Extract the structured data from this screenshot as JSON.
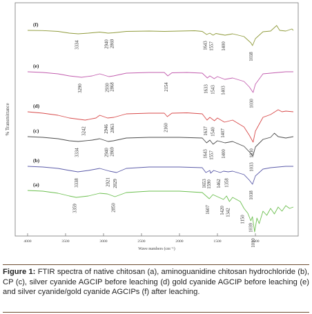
{
  "caption": {
    "label": "Figure 1:",
    "text": "FTIR spectra of native chitosan (a), aminoguanidine chitosan hydrochloride (b), CP (c), silver cyanide AGCIP before leaching (d) gold cyanide AGCIP before leaching (e) and silver cyanide/gold cyanide AGCIPs (f) after leaching."
  },
  "chart_data": {
    "type": "line",
    "title": "",
    "xlabel": "Wave numbers (cm⁻¹)",
    "ylabel": "% Transmittance",
    "xlim": [
      4000,
      500
    ],
    "x_reversed": true,
    "x_ticks": [
      4000,
      3500,
      3000,
      2500,
      2000,
      1500,
      1000
    ],
    "grid": false,
    "series": [
      {
        "name": "(f)",
        "color": "#8f9a3a",
        "baseline": 0.0,
        "points": [
          [
            4000,
            0
          ],
          [
            3800,
            0.3
          ],
          [
            3600,
            1.5
          ],
          [
            3450,
            4
          ],
          [
            3334,
            5
          ],
          [
            3200,
            4
          ],
          [
            3050,
            2.5
          ],
          [
            2940,
            4
          ],
          [
            2869,
            3.5
          ],
          [
            2700,
            1.5
          ],
          [
            2400,
            1
          ],
          [
            2200,
            1.5
          ],
          [
            2000,
            1
          ],
          [
            1800,
            0.5
          ],
          [
            1700,
            1.5
          ],
          [
            1643,
            6
          ],
          [
            1600,
            4
          ],
          [
            1557,
            7
          ],
          [
            1520,
            4.5
          ],
          [
            1400,
            7
          ],
          [
            1300,
            5
          ],
          [
            1150,
            9
          ],
          [
            1100,
            14
          ],
          [
            1060,
            18
          ],
          [
            1038,
            22
          ],
          [
            1000,
            12
          ],
          [
            900,
            2
          ],
          [
            800,
            1
          ],
          [
            720,
            -7
          ],
          [
            680,
            0
          ],
          [
            600,
            1
          ],
          [
            520,
            -2
          ],
          [
            500,
            0
          ]
        ],
        "labels": [
          {
            "x": 3334,
            "text": "3334"
          },
          {
            "x": 2940,
            "text": "2940"
          },
          {
            "x": 2869,
            "text": "2869"
          },
          {
            "x": 1643,
            "text": "1643"
          },
          {
            "x": 1557,
            "text": "1557"
          },
          {
            "x": 1400,
            "text": "1400"
          },
          {
            "x": 1038,
            "text": "1038"
          }
        ]
      },
      {
        "name": "(e)",
        "color": "#c25cae",
        "baseline": 0.0,
        "points": [
          [
            4000,
            0
          ],
          [
            3800,
            1
          ],
          [
            3600,
            3
          ],
          [
            3450,
            6
          ],
          [
            3290,
            8
          ],
          [
            3150,
            6
          ],
          [
            3050,
            3
          ],
          [
            2930,
            7
          ],
          [
            2868,
            6
          ],
          [
            2700,
            2
          ],
          [
            2400,
            1
          ],
          [
            2200,
            1
          ],
          [
            2154,
            6
          ],
          [
            2100,
            1.5
          ],
          [
            1900,
            1
          ],
          [
            1700,
            2
          ],
          [
            1633,
            9
          ],
          [
            1600,
            6
          ],
          [
            1543,
            10
          ],
          [
            1500,
            7
          ],
          [
            1403,
            11
          ],
          [
            1300,
            9
          ],
          [
            1150,
            14
          ],
          [
            1080,
            22
          ],
          [
            1030,
            30
          ],
          [
            1000,
            18
          ],
          [
            900,
            3
          ],
          [
            700,
            1
          ],
          [
            600,
            0
          ],
          [
            500,
            0
          ]
        ],
        "labels": [
          {
            "x": 3290,
            "text": "3290"
          },
          {
            "x": 2930,
            "text": "2930"
          },
          {
            "x": 2868,
            "text": "2868"
          },
          {
            "x": 2154,
            "text": "2154"
          },
          {
            "x": 1633,
            "text": "1633"
          },
          {
            "x": 1543,
            "text": "1543"
          },
          {
            "x": 1403,
            "text": "1403"
          },
          {
            "x": 1030,
            "text": "1030"
          }
        ]
      },
      {
        "name": "(d)",
        "color": "#d84a4a",
        "baseline": 0.0,
        "points": [
          [
            4000,
            0
          ],
          [
            3800,
            2
          ],
          [
            3600,
            5
          ],
          [
            3450,
            9
          ],
          [
            3242,
            12
          ],
          [
            3100,
            9
          ],
          [
            3050,
            5
          ],
          [
            2946,
            9
          ],
          [
            2863,
            8
          ],
          [
            2700,
            3
          ],
          [
            2400,
            2
          ],
          [
            2200,
            2
          ],
          [
            2160,
            7
          ],
          [
            2100,
            2
          ],
          [
            1900,
            1.5
          ],
          [
            1700,
            3
          ],
          [
            1637,
            12
          ],
          [
            1600,
            8
          ],
          [
            1540,
            13
          ],
          [
            1500,
            9
          ],
          [
            1407,
            15
          ],
          [
            1300,
            12
          ],
          [
            1150,
            22
          ],
          [
            1080,
            34
          ],
          [
            1030,
            44
          ],
          [
            1000,
            28
          ],
          [
            900,
            8
          ],
          [
            800,
            4
          ],
          [
            700,
            -3
          ],
          [
            650,
            0
          ],
          [
            600,
            -1
          ],
          [
            500,
            0
          ]
        ],
        "labels": [
          {
            "x": 3242,
            "text": "3242"
          },
          {
            "x": 2946,
            "text": "2946"
          },
          {
            "x": 2863,
            "text": "2863"
          },
          {
            "x": 2160,
            "text": "2160"
          },
          {
            "x": 1637,
            "text": "1637"
          },
          {
            "x": 1540,
            "text": "1540"
          },
          {
            "x": 1407,
            "text": "1407"
          },
          {
            "x": 1030,
            "text": "1030"
          }
        ]
      },
      {
        "name": "(c)",
        "color": "#4a4a4a",
        "baseline": 0.0,
        "points": [
          [
            4000,
            0
          ],
          [
            3800,
            1
          ],
          [
            3600,
            3
          ],
          [
            3450,
            6
          ],
          [
            3334,
            7
          ],
          [
            3150,
            5
          ],
          [
            3050,
            3
          ],
          [
            2940,
            7
          ],
          [
            2869,
            6
          ],
          [
            2700,
            2
          ],
          [
            2400,
            1
          ],
          [
            2000,
            1
          ],
          [
            1700,
            2
          ],
          [
            1643,
            9
          ],
          [
            1600,
            5
          ],
          [
            1557,
            11
          ],
          [
            1500,
            6
          ],
          [
            1400,
            9
          ],
          [
            1300,
            7
          ],
          [
            1150,
            14
          ],
          [
            1080,
            22
          ],
          [
            1033,
            28
          ],
          [
            1000,
            15
          ],
          [
            900,
            4
          ],
          [
            800,
            1
          ],
          [
            750,
            -5
          ],
          [
            700,
            0
          ],
          [
            600,
            2
          ],
          [
            500,
            0
          ]
        ],
        "labels": [
          {
            "x": 3334,
            "text": "3334"
          },
          {
            "x": 2940,
            "text": "2940"
          },
          {
            "x": 2869,
            "text": "2869"
          },
          {
            "x": 1643,
            "text": "1643"
          },
          {
            "x": 1557,
            "text": "1557"
          },
          {
            "x": 1400,
            "text": "1400"
          },
          {
            "x": 1033,
            "text": "1033"
          }
        ]
      },
      {
        "name": "(b)",
        "color": "#5a5aa8",
        "baseline": 0.0,
        "points": [
          [
            4000,
            0
          ],
          [
            3800,
            1
          ],
          [
            3600,
            3
          ],
          [
            3450,
            6
          ],
          [
            3338,
            8
          ],
          [
            3200,
            6
          ],
          [
            3050,
            3
          ],
          [
            2921,
            7
          ],
          [
            2829,
            9
          ],
          [
            2700,
            3
          ],
          [
            2400,
            1
          ],
          [
            2000,
            1
          ],
          [
            1700,
            2
          ],
          [
            1653,
            9
          ],
          [
            1600,
            6
          ],
          [
            1590,
            10
          ],
          [
            1550,
            6
          ],
          [
            1462,
            9
          ],
          [
            1420,
            7
          ],
          [
            1358,
            8
          ],
          [
            1300,
            7
          ],
          [
            1150,
            12
          ],
          [
            1080,
            20
          ],
          [
            1038,
            26
          ],
          [
            1000,
            14
          ],
          [
            900,
            4
          ],
          [
            800,
            2
          ],
          [
            700,
            1
          ],
          [
            600,
            0
          ],
          [
            500,
            0
          ]
        ],
        "labels": [
          {
            "x": 3338,
            "text": "3338"
          },
          {
            "x": 2921,
            "text": "2921"
          },
          {
            "x": 2829,
            "text": "2829"
          },
          {
            "x": 1653,
            "text": "1653"
          },
          {
            "x": 1590,
            "text": "1590"
          },
          {
            "x": 1462,
            "text": "1462"
          },
          {
            "x": 1358,
            "text": "1358"
          },
          {
            "x": 1038,
            "text": "1038"
          }
        ]
      },
      {
        "name": "(a)",
        "color": "#6bbf4e",
        "baseline": 0.0,
        "points": [
          [
            4000,
            0
          ],
          [
            3800,
            1
          ],
          [
            3600,
            4
          ],
          [
            3450,
            8
          ],
          [
            3359,
            10
          ],
          [
            3200,
            8
          ],
          [
            3050,
            4
          ],
          [
            2950,
            5
          ],
          [
            2850,
            9
          ],
          [
            2700,
            3
          ],
          [
            2400,
            1
          ],
          [
            2000,
            1
          ],
          [
            1700,
            3
          ],
          [
            1607,
            12
          ],
          [
            1560,
            6
          ],
          [
            1500,
            9
          ],
          [
            1420,
            13
          ],
          [
            1380,
            8
          ],
          [
            1342,
            16
          ],
          [
            1300,
            10
          ],
          [
            1200,
            16
          ],
          [
            1150,
            26
          ],
          [
            1100,
            33
          ],
          [
            1060,
            44
          ],
          [
            1039,
            38
          ],
          [
            1010,
            60
          ],
          [
            980,
            40
          ],
          [
            950,
            48
          ],
          [
            900,
            30
          ],
          [
            850,
            36
          ],
          [
            800,
            26
          ],
          [
            750,
            34
          ],
          [
            700,
            24
          ],
          [
            650,
            30
          ],
          [
            600,
            22
          ],
          [
            550,
            26
          ],
          [
            500,
            24
          ]
        ],
        "labels": [
          {
            "x": 3359,
            "text": "3359"
          },
          {
            "x": 2850,
            "text": "2850"
          },
          {
            "x": 1607,
            "text": "1607"
          },
          {
            "x": 1420,
            "text": "1420"
          },
          {
            "x": 1342,
            "text": "1342"
          },
          {
            "x": 1150,
            "text": "1150"
          },
          {
            "x": 1039,
            "text": "1039"
          },
          {
            "x": 1010,
            "text": "1010"
          }
        ]
      }
    ]
  }
}
